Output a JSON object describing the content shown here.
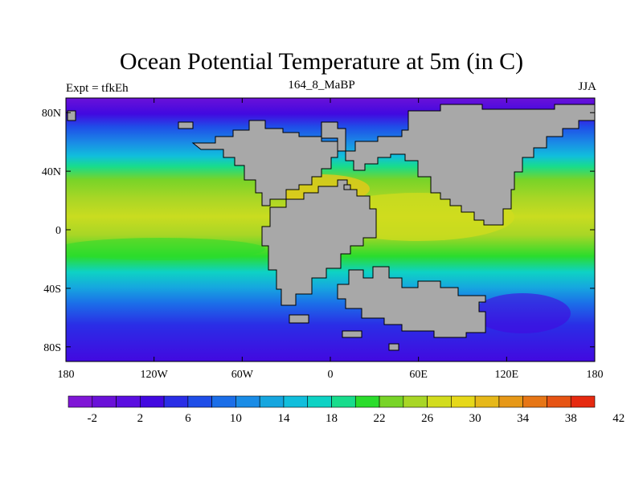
{
  "title": "Ocean Potential Temperature at 5m (in C)",
  "subtitle_left": "Expt = tfkEh",
  "subtitle_center": "164_8_MaBP",
  "subtitle_right": "JJA",
  "x_ticks": [
    "180",
    "120W",
    "60W",
    "0",
    "60E",
    "120E",
    "180"
  ],
  "y_ticks": [
    "80N",
    "40N",
    "0",
    "40S",
    "80S"
  ],
  "colorbar_labels": [
    "-2",
    "2",
    "6",
    "10",
    "14",
    "18",
    "22",
    "26",
    "30",
    "34",
    "38",
    "42"
  ],
  "colorbar_colors": [
    "#7f16d6",
    "#6a11d8",
    "#5a0ee0",
    "#4209e0",
    "#2a2ee6",
    "#1f4ee8",
    "#1b6ee8",
    "#1a8ce6",
    "#16a6df",
    "#11bedc",
    "#0ed2c4",
    "#18dc8c",
    "#2bdc2c",
    "#78d428",
    "#a8d626",
    "#d2dc1e",
    "#e6d81a",
    "#e6b81a",
    "#e69818",
    "#e67616",
    "#e65414",
    "#e62a10"
  ],
  "land_color": "#a8a8a8"
}
